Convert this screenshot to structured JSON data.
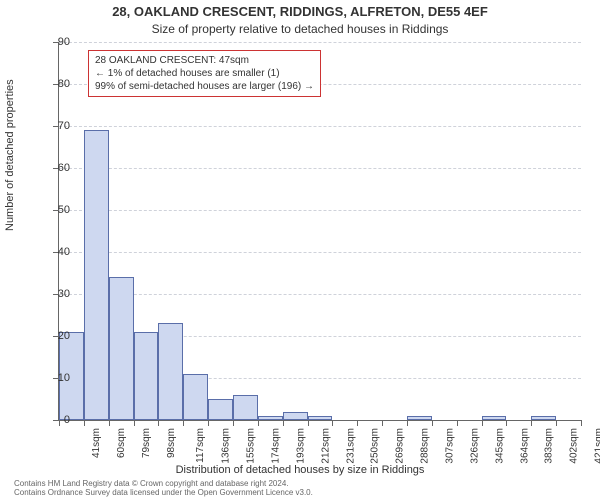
{
  "title_main": "28, OAKLAND CRESCENT, RIDDINGS, ALFRETON, DE55 4EF",
  "title_sub": "Size of property relative to detached houses in Riddings",
  "y_label": "Number of detached properties",
  "x_label": "Distribution of detached houses by size in Riddings",
  "footer_line1": "Contains HM Land Registry data © Crown copyright and database right 2024.",
  "footer_line2": "Contains Ordnance Survey data licensed under the Open Government Licence v3.0.",
  "chart": {
    "type": "histogram",
    "y_max": 90,
    "y_tick_step": 10,
    "x_categories": [
      "41sqm",
      "60sqm",
      "79sqm",
      "98sqm",
      "117sqm",
      "136sqm",
      "155sqm",
      "174sqm",
      "193sqm",
      "212sqm",
      "231sqm",
      "250sqm",
      "269sqm",
      "288sqm",
      "307sqm",
      "326sqm",
      "345sqm",
      "364sqm",
      "383sqm",
      "402sqm",
      "421sqm"
    ],
    "bar_values": [
      21,
      69,
      34,
      21,
      23,
      11,
      5,
      6,
      1,
      2,
      1,
      0,
      0,
      0,
      1,
      0,
      0,
      1,
      0,
      1
    ],
    "bar_fill_color": "#ced8f0",
    "bar_border_color": "#5a6ea9",
    "grid_color": "#cfd2da",
    "background_color": "#ffffff",
    "axis_color": "#666666",
    "title_fontsize": 13,
    "subtitle_fontsize": 12,
    "axis_label_fontsize": 11,
    "tick_fontsize": 11
  },
  "info_box": {
    "border_color": "#cc3333",
    "background_color": "#ffffff",
    "fontsize": 10,
    "line1": "28 OAKLAND CRESCENT: 47sqm",
    "line2": "← 1% of detached houses are smaller (1)",
    "line3": "99% of semi-detached houses are larger (196) →"
  }
}
